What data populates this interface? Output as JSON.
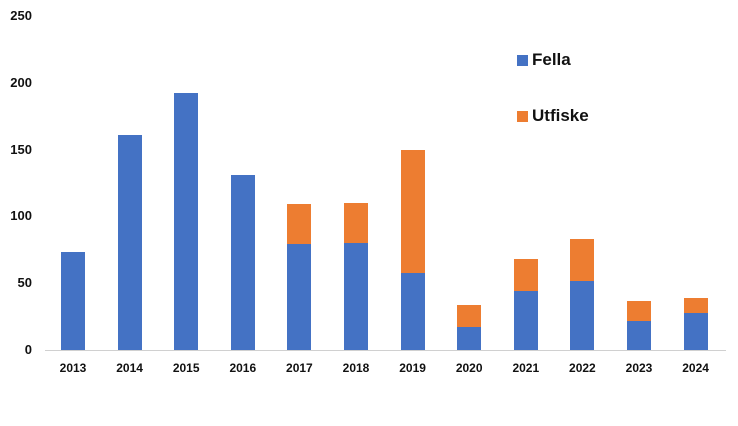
{
  "chart_data": {
    "type": "bar",
    "stacked": true,
    "title": "",
    "xlabel": "",
    "ylabel": "",
    "ylim": [
      0,
      250
    ],
    "yticks": [
      0,
      50,
      100,
      150,
      200,
      250
    ],
    "grid": false,
    "legend_position": "top-right (inside)",
    "categories": [
      "2013",
      "2014",
      "2015",
      "2016",
      "2017",
      "2018",
      "2019",
      "2020",
      "2021",
      "2022",
      "2023",
      "2024"
    ],
    "series": [
      {
        "name": "Fella",
        "color": "#4472c4",
        "values": [
          73,
          161,
          192,
          131,
          79,
          80,
          58,
          17,
          44,
          52,
          22,
          28
        ]
      },
      {
        "name": "Utfiske",
        "color": "#ed7d31",
        "values": [
          0,
          0,
          0,
          0,
          30,
          30,
          92,
          17,
          24,
          31,
          15,
          11
        ]
      }
    ],
    "totals": [
      73,
      161,
      192,
      131,
      109,
      110,
      150,
      34,
      68,
      83,
      37,
      39
    ]
  },
  "legend": {
    "items": [
      {
        "label": "Fella",
        "color": "#4472c4"
      },
      {
        "label": "Utfiske",
        "color": "#ed7d31"
      }
    ]
  },
  "y_axis": {
    "ticks": [
      "0",
      "50",
      "100",
      "150",
      "200",
      "250"
    ]
  },
  "x_axis": {
    "ticks": [
      "2013",
      "2014",
      "2015",
      "2016",
      "2017",
      "2018",
      "2019",
      "2020",
      "2021",
      "2022",
      "2023",
      "2024"
    ]
  }
}
